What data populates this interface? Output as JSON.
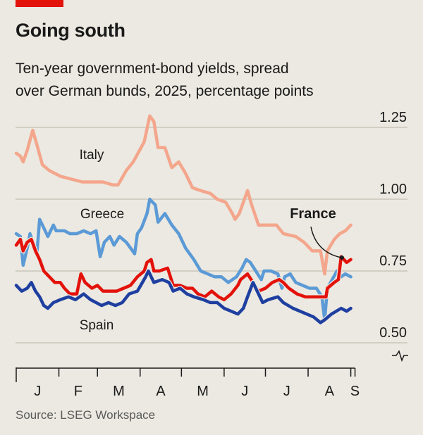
{
  "header": {
    "title": "Going south",
    "subtitle_line1": "Ten-year government-bond yields, spread",
    "subtitle_line2": "over German bunds, 2025, percentage points",
    "accent_color": "#e3120b"
  },
  "footer": {
    "source": "Source: LSEG Workspace"
  },
  "chart_data": {
    "type": "line",
    "title": "Going south",
    "subtitle": "Ten-year government-bond yields, spread over German bunds, 2025, percentage points",
    "xlabel": "",
    "ylabel": "percentage points",
    "x_unit": "day of year 2025",
    "x_range": [
      0,
      246
    ],
    "ylim": [
      0.45,
      1.3
    ],
    "y_ticks": [
      {
        "value": 1.25,
        "label": "1.25"
      },
      {
        "value": 1.0,
        "label": "1.00"
      },
      {
        "value": 0.75,
        "label": "0.75"
      },
      {
        "value": 0.5,
        "label": "0.50"
      }
    ],
    "y_axis_break": true,
    "grid": true,
    "month_ticks": [
      0,
      31,
      59,
      90,
      120,
      151,
      181,
      212,
      243
    ],
    "month_labels": [
      "J",
      "F",
      "M",
      "A",
      "M",
      "J",
      "J",
      "A",
      "S"
    ],
    "series": [
      {
        "name": "Italy",
        "color": "#f4a68c",
        "label_position": "top-left",
        "points": [
          [
            0,
            1.16
          ],
          [
            3,
            1.15
          ],
          [
            5,
            1.13
          ],
          [
            8,
            1.17
          ],
          [
            12,
            1.24
          ],
          [
            15,
            1.19
          ],
          [
            19,
            1.12
          ],
          [
            24,
            1.1
          ],
          [
            32,
            1.08
          ],
          [
            40,
            1.07
          ],
          [
            48,
            1.06
          ],
          [
            55,
            1.06
          ],
          [
            63,
            1.06
          ],
          [
            70,
            1.05
          ],
          [
            74,
            1.05
          ],
          [
            80,
            1.1
          ],
          [
            85,
            1.13
          ],
          [
            93,
            1.2
          ],
          [
            97,
            1.29
          ],
          [
            100,
            1.27
          ],
          [
            103,
            1.18
          ],
          [
            108,
            1.18
          ],
          [
            113,
            1.11
          ],
          [
            118,
            1.13
          ],
          [
            123,
            1.09
          ],
          [
            128,
            1.04
          ],
          [
            134,
            1.03
          ],
          [
            141,
            1.02
          ],
          [
            146,
            1.0
          ],
          [
            152,
            0.99
          ],
          [
            157,
            0.95
          ],
          [
            159,
            0.93
          ],
          [
            162,
            0.95
          ],
          [
            168,
            1.03
          ],
          [
            171,
            0.98
          ],
          [
            176,
            0.91
          ],
          [
            182,
            0.91
          ],
          [
            189,
            0.91
          ],
          [
            194,
            0.88
          ],
          [
            203,
            0.87
          ],
          [
            209,
            0.85
          ],
          [
            215,
            0.82
          ],
          [
            221,
            0.82
          ],
          [
            224,
            0.74
          ],
          [
            226,
            0.82
          ],
          [
            231,
            0.86
          ],
          [
            235,
            0.88
          ],
          [
            239,
            0.89
          ],
          [
            243,
            0.91
          ]
        ]
      },
      {
        "name": "Greece",
        "color": "#5b9ad6",
        "label_position": "upper-left",
        "points": [
          [
            0,
            0.88
          ],
          [
            3,
            0.87
          ],
          [
            5,
            0.77
          ],
          [
            8,
            0.83
          ],
          [
            10,
            0.88
          ],
          [
            13,
            0.84
          ],
          [
            15,
            0.81
          ],
          [
            17,
            0.93
          ],
          [
            20,
            0.9
          ],
          [
            23,
            0.87
          ],
          [
            27,
            0.91
          ],
          [
            29,
            0.89
          ],
          [
            35,
            0.89
          ],
          [
            39,
            0.88
          ],
          [
            44,
            0.88
          ],
          [
            49,
            0.89
          ],
          [
            54,
            0.88
          ],
          [
            58,
            0.89
          ],
          [
            61,
            0.8
          ],
          [
            64,
            0.85
          ],
          [
            68,
            0.87
          ],
          [
            71,
            0.84
          ],
          [
            75,
            0.87
          ],
          [
            80,
            0.85
          ],
          [
            86,
            0.81
          ],
          [
            88,
            0.88
          ],
          [
            91,
            0.9
          ],
          [
            95,
            0.95
          ],
          [
            97,
            1.0
          ],
          [
            101,
            0.98
          ],
          [
            103,
            0.92
          ],
          [
            108,
            0.95
          ],
          [
            113,
            0.91
          ],
          [
            118,
            0.88
          ],
          [
            123,
            0.83
          ],
          [
            129,
            0.79
          ],
          [
            134,
            0.75
          ],
          [
            139,
            0.74
          ],
          [
            144,
            0.73
          ],
          [
            149,
            0.73
          ],
          [
            154,
            0.71
          ],
          [
            160,
            0.73
          ],
          [
            164,
            0.76
          ],
          [
            167,
            0.79
          ],
          [
            170,
            0.78
          ],
          [
            174,
            0.75
          ],
          [
            178,
            0.72
          ],
          [
            180,
            0.75
          ],
          [
            185,
            0.75
          ],
          [
            190,
            0.74
          ],
          [
            193,
            0.69
          ],
          [
            195,
            0.73
          ],
          [
            199,
            0.74
          ],
          [
            203,
            0.71
          ],
          [
            208,
            0.7
          ],
          [
            213,
            0.69
          ],
          [
            218,
            0.69
          ],
          [
            222,
            0.66
          ],
          [
            224,
            0.58
          ],
          [
            226,
            0.69
          ],
          [
            233,
            0.75
          ],
          [
            236,
            0.73
          ],
          [
            239,
            0.74
          ],
          [
            243,
            0.73
          ]
        ]
      },
      {
        "name": "France",
        "color": "#e3120b",
        "label_position": "annotated-right",
        "points": [
          [
            0,
            0.84
          ],
          [
            3,
            0.86
          ],
          [
            5,
            0.82
          ],
          [
            8,
            0.85
          ],
          [
            11,
            0.86
          ],
          [
            14,
            0.82
          ],
          [
            17,
            0.79
          ],
          [
            20,
            0.75
          ],
          [
            24,
            0.73
          ],
          [
            28,
            0.71
          ],
          [
            32,
            0.71
          ],
          [
            35,
            0.69
          ],
          [
            39,
            0.67
          ],
          [
            44,
            0.67
          ],
          [
            47,
            0.74
          ],
          [
            50,
            0.71
          ],
          [
            55,
            0.69
          ],
          [
            59,
            0.7
          ],
          [
            63,
            0.68
          ],
          [
            67,
            0.68
          ],
          [
            73,
            0.68
          ],
          [
            78,
            0.69
          ],
          [
            83,
            0.7
          ],
          [
            88,
            0.73
          ],
          [
            93,
            0.75
          ],
          [
            95,
            0.78
          ],
          [
            98,
            0.79
          ],
          [
            100,
            0.75
          ],
          [
            104,
            0.75
          ],
          [
            110,
            0.76
          ],
          [
            114,
            0.7
          ],
          [
            119,
            0.7
          ],
          [
            124,
            0.69
          ],
          [
            128,
            0.69
          ],
          [
            132,
            0.67
          ],
          [
            137,
            0.66
          ],
          [
            142,
            0.68
          ],
          [
            147,
            0.66
          ],
          [
            151,
            0.65
          ],
          [
            156,
            0.67
          ],
          [
            161,
            0.7
          ],
          [
            163,
            0.72
          ],
          [
            168,
            0.74
          ],
          [
            172,
            0.71
          ],
          [
            176,
            0.68
          ],
          [
            181,
            0.69
          ],
          [
            186,
            0.71
          ],
          [
            191,
            0.72
          ],
          [
            194,
            0.71
          ],
          [
            194,
            0.71
          ],
          [
            198,
            0.69
          ],
          [
            204,
            0.67
          ],
          [
            210,
            0.66
          ],
          [
            218,
            0.66
          ],
          [
            225,
            0.66
          ],
          [
            226,
            0.69
          ],
          [
            231,
            0.71
          ],
          [
            234,
            0.72
          ],
          [
            236,
            0.8
          ],
          [
            238,
            0.79
          ],
          [
            240,
            0.78
          ],
          [
            243,
            0.79
          ]
        ]
      },
      {
        "name": "Spain",
        "color": "#1f3fa0",
        "label_position": "bottom-left",
        "points": [
          [
            0,
            0.7
          ],
          [
            4,
            0.68
          ],
          [
            8,
            0.69
          ],
          [
            11,
            0.71
          ],
          [
            14,
            0.68
          ],
          [
            17,
            0.66
          ],
          [
            20,
            0.63
          ],
          [
            23,
            0.62
          ],
          [
            27,
            0.64
          ],
          [
            32,
            0.65
          ],
          [
            38,
            0.66
          ],
          [
            43,
            0.65
          ],
          [
            49,
            0.67
          ],
          [
            54,
            0.65
          ],
          [
            62,
            0.63
          ],
          [
            67,
            0.64
          ],
          [
            72,
            0.63
          ],
          [
            77,
            0.64
          ],
          [
            82,
            0.67
          ],
          [
            88,
            0.68
          ],
          [
            94,
            0.73
          ],
          [
            96,
            0.75
          ],
          [
            100,
            0.71
          ],
          [
            106,
            0.72
          ],
          [
            111,
            0.71
          ],
          [
            114,
            0.68
          ],
          [
            119,
            0.69
          ],
          [
            124,
            0.67
          ],
          [
            129,
            0.66
          ],
          [
            136,
            0.65
          ],
          [
            141,
            0.64
          ],
          [
            146,
            0.64
          ],
          [
            151,
            0.62
          ],
          [
            156,
            0.61
          ],
          [
            161,
            0.6
          ],
          [
            165,
            0.62
          ],
          [
            168,
            0.66
          ],
          [
            172,
            0.71
          ],
          [
            175,
            0.68
          ],
          [
            179,
            0.64
          ],
          [
            183,
            0.65
          ],
          [
            190,
            0.66
          ],
          [
            194,
            0.64
          ],
          [
            201,
            0.62
          ],
          [
            206,
            0.61
          ],
          [
            211,
            0.6
          ],
          [
            216,
            0.59
          ],
          [
            221,
            0.57
          ],
          [
            224,
            0.58
          ],
          [
            229,
            0.6
          ],
          [
            236,
            0.62
          ],
          [
            240,
            0.61
          ],
          [
            243,
            0.62
          ]
        ]
      }
    ],
    "annotation": {
      "text": "France",
      "target_series": "France"
    }
  }
}
